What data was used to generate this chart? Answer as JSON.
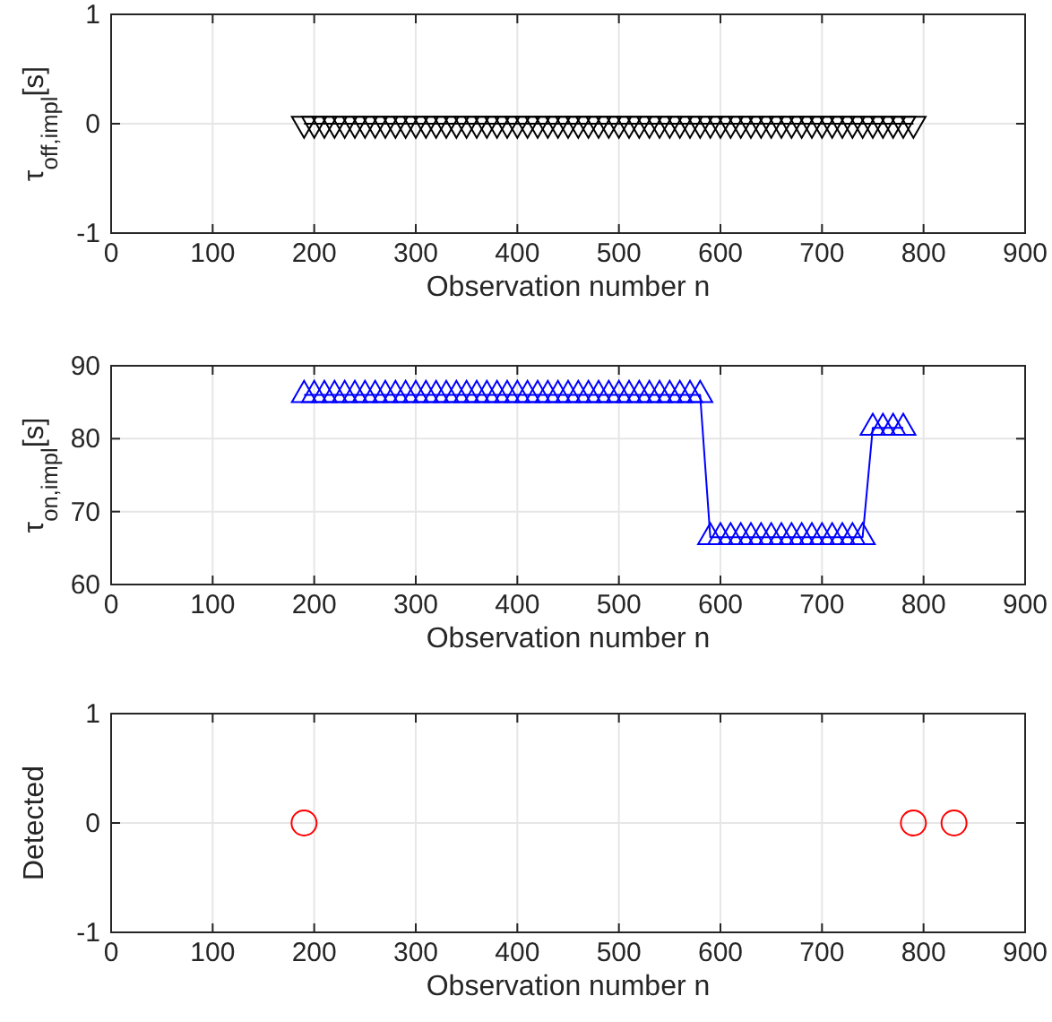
{
  "chart_data": [
    {
      "type": "line",
      "ylabel": "τ$_{off,impl}$[s]",
      "xlabel": "Observation number n",
      "xlim": [
        0,
        900
      ],
      "xticks": [
        0,
        100,
        200,
        300,
        400,
        500,
        600,
        700,
        800,
        900
      ],
      "ylim": [
        -1,
        1
      ],
      "yticks": [
        -1,
        0,
        1
      ],
      "grid": true,
      "marker": "triangle",
      "series": [
        {
          "color": "#000000",
          "x": [
            190,
            200,
            210,
            220,
            230,
            240,
            250,
            260,
            270,
            280,
            290,
            300,
            310,
            320,
            330,
            340,
            350,
            360,
            370,
            380,
            390,
            400,
            410,
            420,
            430,
            440,
            450,
            460,
            470,
            480,
            490,
            500,
            510,
            520,
            530,
            540,
            550,
            560,
            570,
            580,
            590,
            600,
            610,
            620,
            630,
            640,
            650,
            660,
            670,
            680,
            690,
            700,
            710,
            720,
            730,
            740,
            750,
            760,
            770,
            780,
            790
          ],
          "values": [
            0,
            0,
            0,
            0,
            0,
            0,
            0,
            0,
            0,
            0,
            0,
            0,
            0,
            0,
            0,
            0,
            0,
            0,
            0,
            0,
            0,
            0,
            0,
            0,
            0,
            0,
            0,
            0,
            0,
            0,
            0,
            0,
            0,
            0,
            0,
            0,
            0,
            0,
            0,
            0,
            0,
            0,
            0,
            0,
            0,
            0,
            0,
            0,
            0,
            0,
            0,
            0,
            0,
            0,
            0,
            0,
            0,
            0,
            0,
            0,
            0
          ]
        }
      ]
    },
    {
      "type": "line",
      "ylabel": "τ$_{on,impl}$[s]",
      "xlabel": "Observation number n",
      "xlim": [
        0,
        900
      ],
      "xticks": [
        0,
        100,
        200,
        300,
        400,
        500,
        600,
        700,
        800,
        900
      ],
      "ylim": [
        60,
        90
      ],
      "yticks": [
        60,
        70,
        80,
        90
      ],
      "grid": true,
      "marker": "triangle",
      "series": [
        {
          "color": "#0000ff",
          "x": [
            190,
            200,
            210,
            220,
            230,
            240,
            250,
            260,
            270,
            280,
            290,
            300,
            310,
            320,
            330,
            340,
            350,
            360,
            370,
            380,
            390,
            400,
            410,
            420,
            430,
            440,
            450,
            460,
            470,
            480,
            490,
            500,
            510,
            520,
            530,
            540,
            550,
            560,
            570,
            580,
            590,
            600,
            610,
            620,
            630,
            640,
            650,
            660,
            670,
            680,
            690,
            700,
            710,
            720,
            730,
            740,
            750,
            760,
            770,
            780
          ],
          "values": [
            86,
            86,
            86,
            86,
            86,
            86,
            86,
            86,
            86,
            86,
            86,
            86,
            86,
            86,
            86,
            86,
            86,
            86,
            86,
            86,
            86,
            86,
            86,
            86,
            86,
            86,
            86,
            86,
            86,
            86,
            86,
            86,
            86,
            86,
            86,
            86,
            86,
            86,
            86,
            86,
            66.5,
            66.5,
            66.5,
            66.5,
            66.5,
            66.5,
            66.5,
            66.5,
            66.5,
            66.5,
            66.5,
            66.5,
            66.5,
            66.5,
            66.5,
            66.5,
            81.5,
            81.5,
            81.5,
            81.5
          ]
        }
      ]
    },
    {
      "type": "scatter",
      "ylabel": "Detected",
      "xlabel": "Observation number n",
      "xlim": [
        0,
        900
      ],
      "xticks": [
        0,
        100,
        200,
        300,
        400,
        500,
        600,
        700,
        800,
        900
      ],
      "ylim": [
        -1,
        1
      ],
      "yticks": [
        -1,
        0,
        1
      ],
      "grid": true,
      "marker": "circle",
      "series": [
        {
          "color": "#ff0000",
          "x": [
            190,
            790,
            830
          ],
          "values": [
            0,
            0,
            0
          ]
        }
      ]
    }
  ]
}
